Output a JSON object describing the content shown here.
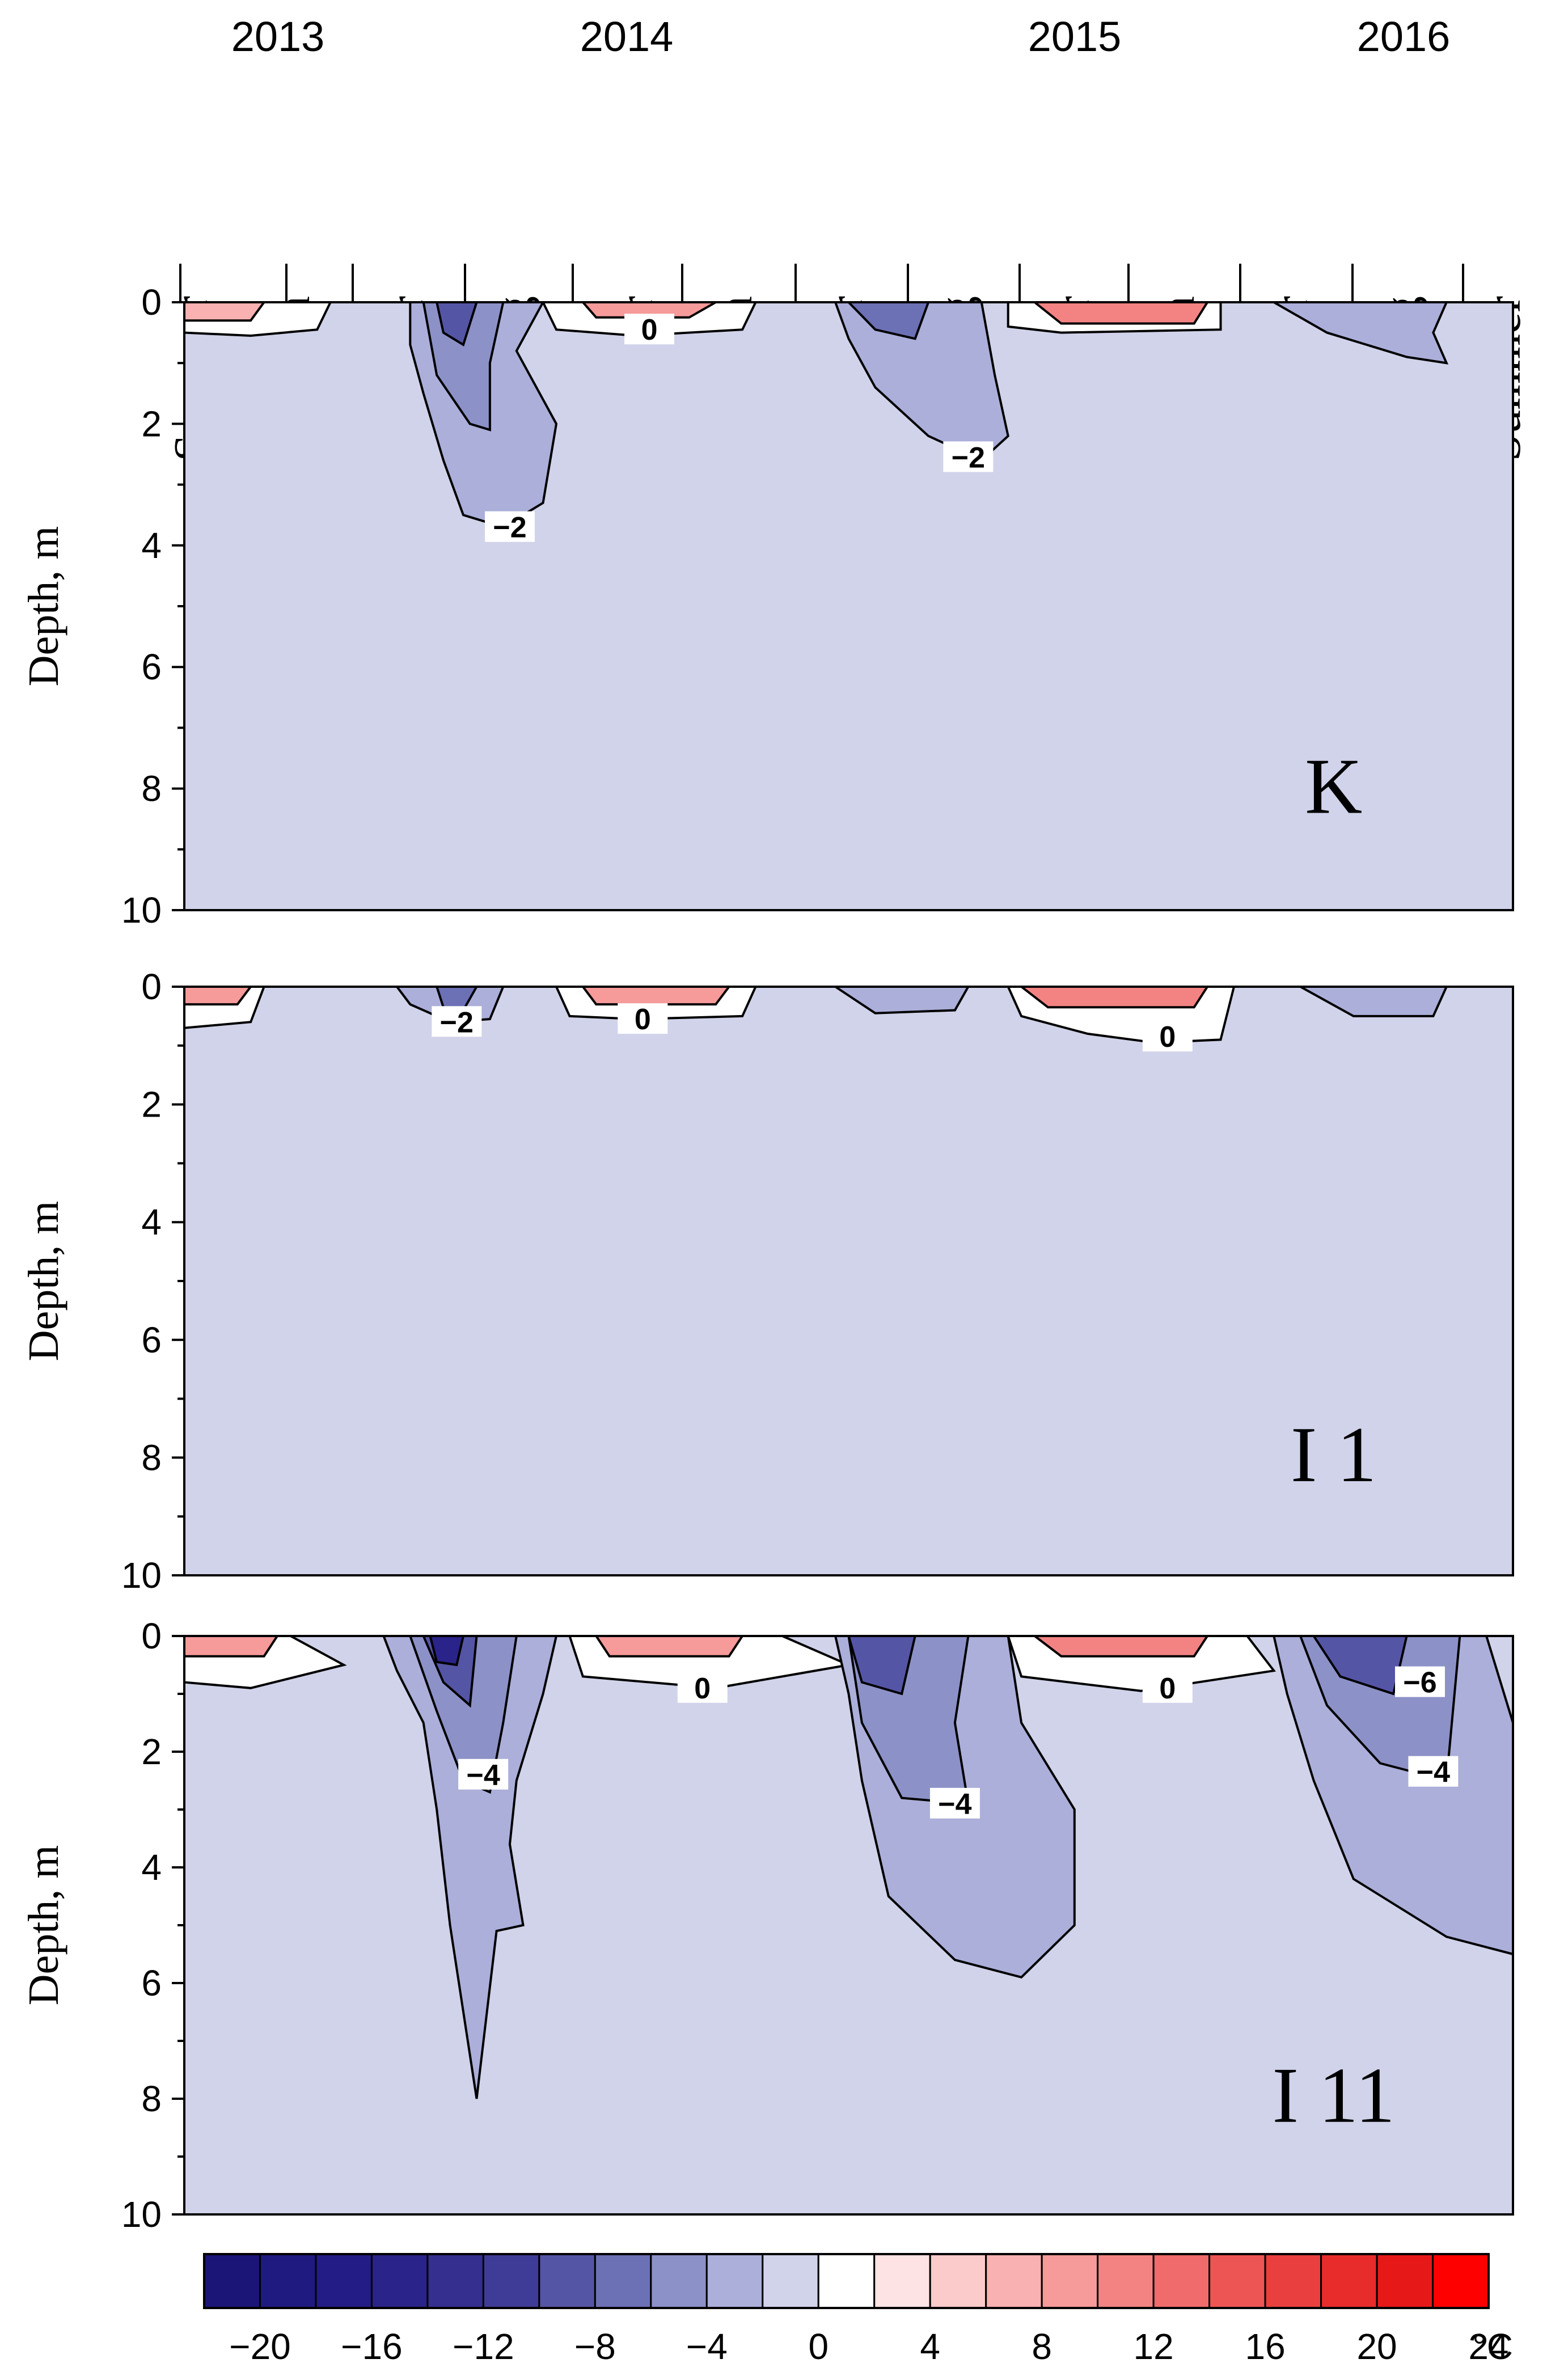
{
  "chart_data": {
    "type": "heatmap",
    "years": [
      "2013",
      "2014",
      "2015",
      "2016"
    ],
    "seasons": [
      "Summer",
      "Autumn",
      "Winter",
      "Spring",
      "Summer",
      "Autumn",
      "Winter",
      "Spring",
      "Summer",
      "Autumn",
      "Winter",
      "Spring",
      "Summer"
    ],
    "ylabel": "Depth, m",
    "yticks": [
      "0",
      "2",
      "4",
      "6",
      "8",
      "10"
    ],
    "ylim": [
      0,
      10
    ],
    "y_inverted": true,
    "colorbar": {
      "ticks": [
        "−20",
        "−16",
        "−12",
        "−8",
        "−4",
        "0",
        "4",
        "8",
        "12",
        "16",
        "20",
        "24"
      ],
      "unit": "°C",
      "levels": [
        -22,
        -20,
        -18,
        -16,
        -14,
        -12,
        -10,
        -8,
        -6,
        -4,
        -2,
        0,
        2,
        4,
        6,
        8,
        10,
        12,
        14,
        16,
        18,
        20,
        22,
        24
      ],
      "colors": [
        "#1a1577",
        "#1f1a80",
        "#231c86",
        "#2a2389",
        "#352f8f",
        "#3f3c97",
        "#5555a6",
        "#6c70b5",
        "#8c91c7",
        "#abafd9",
        "#d0d3e9",
        "#ffffff",
        "#fde3e3",
        "#fbcaca",
        "#f9b1b1",
        "#f69a9a",
        "#f38383",
        "#f06b6b",
        "#ed5555",
        "#ea3f3f",
        "#e82b2b",
        "#e71818",
        "#ff0000"
      ]
    },
    "panels": [
      {
        "label": "K",
        "contour_labels": [
          "0",
          "−2",
          "−2"
        ]
      },
      {
        "label": "I 1",
        "contour_labels": [
          "−2",
          "0",
          "0"
        ]
      },
      {
        "label": "I 11",
        "contour_labels": [
          "0",
          "−4",
          "−4",
          "0",
          "−6",
          "−4"
        ]
      }
    ]
  }
}
